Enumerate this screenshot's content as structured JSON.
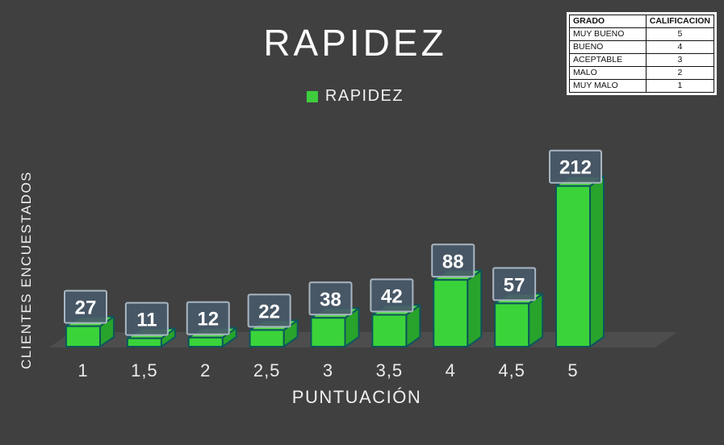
{
  "title": "RAPIDEZ",
  "legend": {
    "label": "RAPIDEZ"
  },
  "chart_data": {
    "type": "bar",
    "style": "3d",
    "title": "RAPIDEZ",
    "series_name": "RAPIDEZ",
    "categories": [
      "1",
      "1,5",
      "2",
      "2,5",
      "3",
      "3,5",
      "4",
      "4,5",
      "5"
    ],
    "values": [
      27,
      11,
      12,
      22,
      38,
      42,
      88,
      57,
      212
    ],
    "data_labels_visible": true,
    "xlabel": "PUNTUACIÓN",
    "ylabel": "CLIENTES ENCUESTADOS",
    "ylim": [
      0,
      220
    ],
    "grid": false,
    "legend_position": "top-center"
  },
  "grade_table": {
    "headers": [
      "GRADO",
      "CALIFICACION"
    ],
    "rows": [
      {
        "grade": "MUY BUENO",
        "score": "5"
      },
      {
        "grade": "BUENO",
        "score": "4"
      },
      {
        "grade": "ACEPTABLE",
        "score": "3"
      },
      {
        "grade": "MALO",
        "score": "2"
      },
      {
        "grade": "MUY MALO",
        "score": "1"
      }
    ]
  },
  "colors": {
    "background": "#404040",
    "floor": "#4d4d4d",
    "bar_front": "#3bd33a",
    "bar_top": "#52dc46",
    "bar_side": "#28a32c",
    "bar_outline": "#0d555c",
    "label_box_fill": "#485969",
    "label_box_border": "#a9b6c2",
    "label_text": "#ffffff",
    "tick_text": "#ebebeb",
    "legend_swatch": "#3ecc3e"
  }
}
